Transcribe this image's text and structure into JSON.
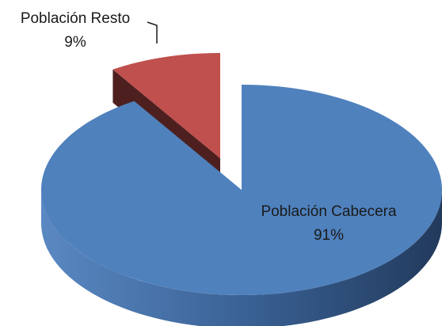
{
  "chart_data": {
    "type": "pie",
    "categories": [
      "Población Cabecera",
      "Población Resto"
    ],
    "values": [
      91,
      9
    ],
    "value_labels": [
      "91%",
      "9%"
    ],
    "colors": [
      "#4f81bd",
      "#c0504d"
    ]
  }
}
